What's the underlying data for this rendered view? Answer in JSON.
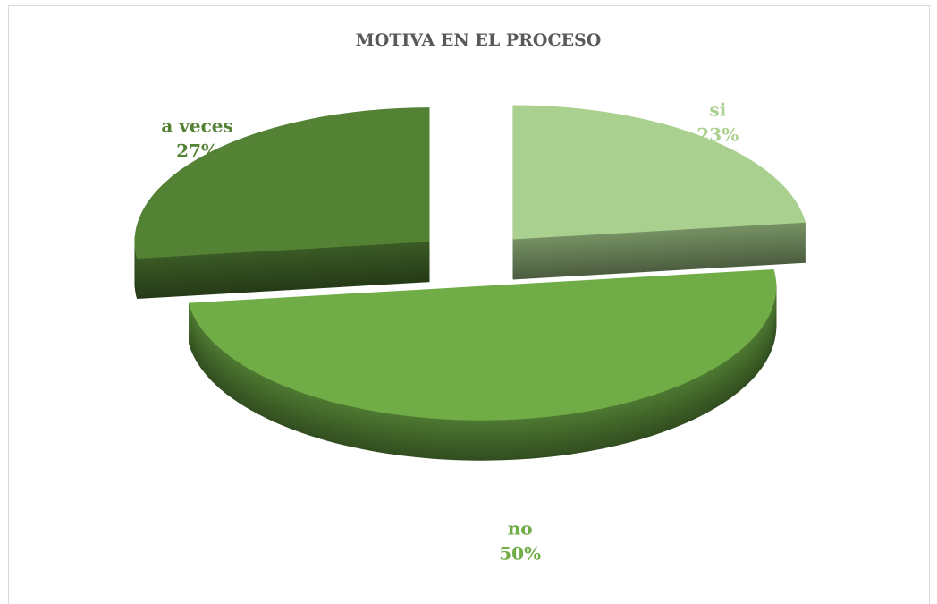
{
  "chart_data": {
    "type": "pie",
    "title": "MOTIVA EN EL PROCESO",
    "categories": [
      "si",
      "no",
      "a veces"
    ],
    "values": [
      23,
      50,
      27
    ],
    "value_labels": [
      "23%",
      "50%",
      "27%"
    ],
    "colors": [
      "#a9d08e",
      "#70ad47",
      "#548235"
    ]
  }
}
